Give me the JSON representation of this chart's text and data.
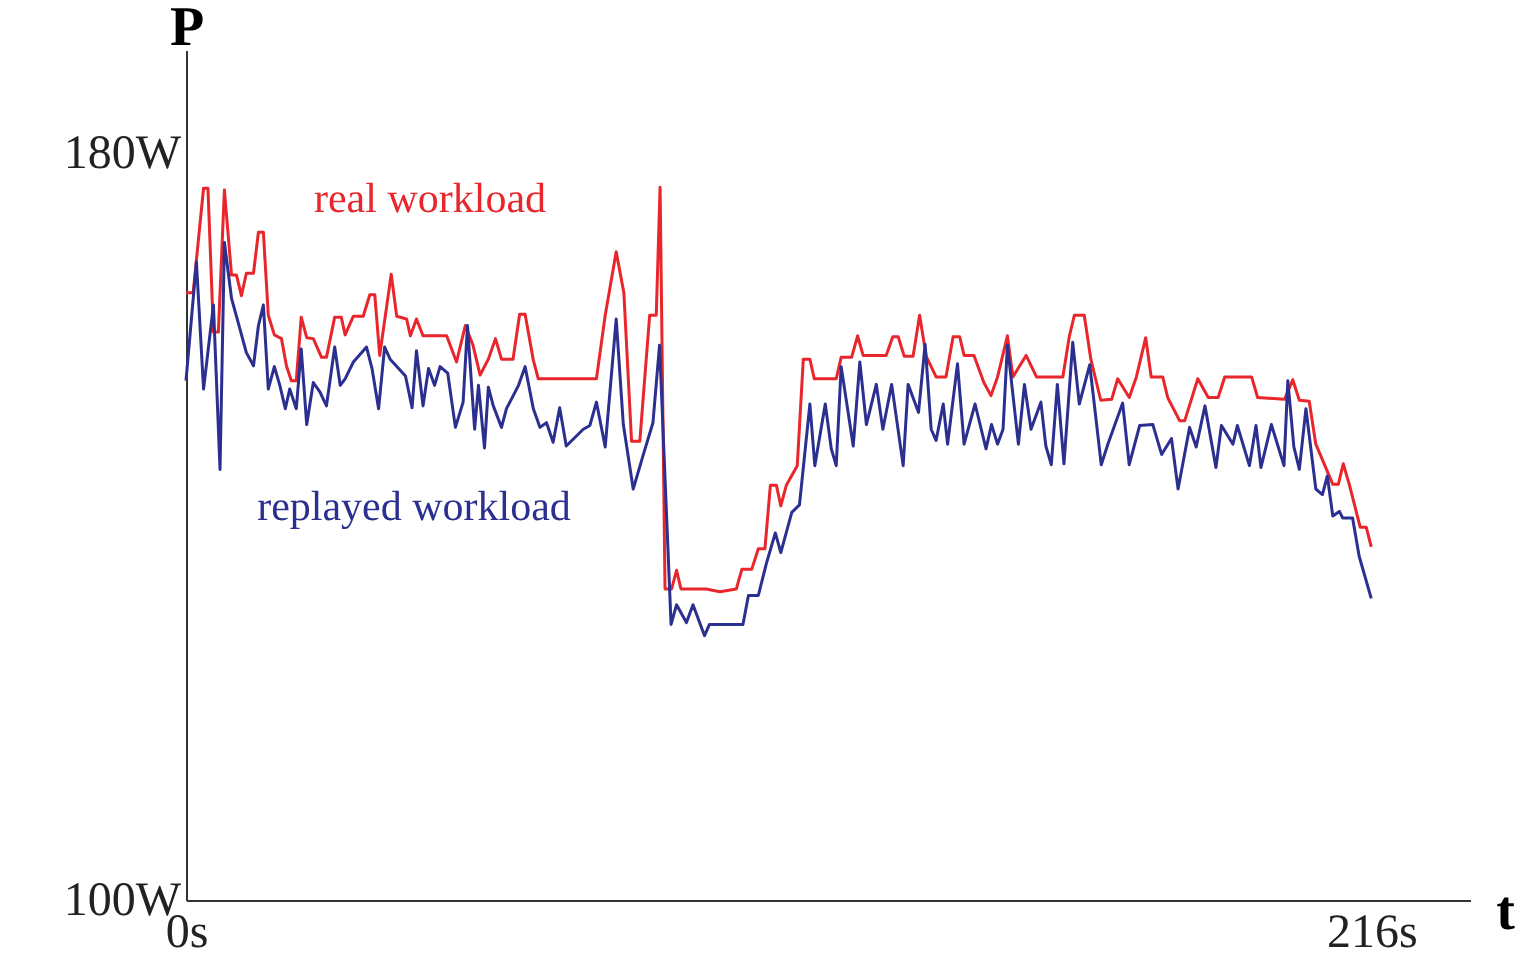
{
  "chart_data": {
    "type": "line",
    "xlabel": "t",
    "ylabel": "P",
    "xlim": [
      0,
      234
    ],
    "ylim": [
      100,
      191
    ],
    "xticks": [
      {
        "value": 0,
        "label": "0s"
      },
      {
        "value": 216,
        "label": "216s"
      }
    ],
    "yticks": [
      {
        "value": 100,
        "label": "100W"
      },
      {
        "value": 180,
        "label": "180W"
      }
    ],
    "grid": false,
    "marker": "none",
    "line_style": "solid",
    "series": [
      {
        "name": "real workload",
        "color": "#e8262b",
        "x": [
          0,
          1.3,
          3.2,
          4.0,
          5.0,
          5.9,
          7.0,
          8.3,
          9.2,
          10.1,
          11.0,
          12.3,
          13.2,
          14.1,
          15.0,
          16.1,
          17.4,
          18.3,
          19.2,
          20.1,
          21.0,
          22.0,
          23.2,
          24.7,
          25.6,
          27.1,
          28.3,
          29.0,
          30.5,
          32.3,
          33.5,
          34.4,
          35.3,
          37.4,
          38.4,
          40.2,
          40.9,
          42.0,
          43.2,
          47.5,
          49.3,
          50.9,
          52.3,
          53.6,
          55.1,
          56.4,
          57.5,
          59.6,
          60.8,
          61.8,
          63.3,
          64.2,
          74.8,
          76.4,
          78.4,
          79.8,
          81.2,
          82.7,
          84.5,
          85.7,
          86.4,
          87.3,
          88.5,
          89.4,
          90.2,
          94.8,
          97.3,
          100.3,
          101.3,
          103.1,
          104.3,
          105.5,
          106.5,
          107.6,
          108.4,
          109.4,
          111.4,
          112.5,
          113.7,
          114.5,
          118.5,
          119.4,
          121.3,
          122.4,
          123.4,
          127.6,
          128.8,
          129.8,
          130.9,
          132.5,
          133.7,
          134.9,
          136.7,
          138.5,
          139.8,
          141.0,
          141.8,
          143.6,
          145.4,
          146.7,
          147.9,
          149.7,
          150.7,
          153.1,
          155.0,
          159.8,
          161.0,
          161.9,
          163.7,
          164.9,
          166.7,
          168.7,
          169.8,
          171.9,
          173.2,
          174.9,
          175.9,
          178.0,
          178.9,
          181.1,
          182.0,
          184.4,
          186.3,
          188.1,
          189.3,
          194.2,
          195.3,
          200.2,
          201.7,
          202.9,
          204.7,
          205.9,
          209.0,
          210.0,
          210.9,
          212.0,
          214.0,
          215.1,
          216.0
        ],
        "values": [
          165.0,
          165.0,
          176.2,
          176.2,
          160.8,
          160.8,
          176.0,
          166.9,
          166.9,
          164.7,
          167.1,
          167.1,
          171.5,
          171.5,
          162.6,
          160.5,
          160.1,
          157.2,
          155.6,
          155.6,
          162.4,
          160.2,
          160.1,
          158.1,
          158.1,
          162.4,
          162.4,
          160.5,
          162.5,
          162.5,
          164.8,
          164.8,
          158.3,
          167.0,
          162.5,
          162.2,
          160.4,
          162.2,
          160.4,
          160.4,
          157.6,
          161.5,
          159.4,
          156.2,
          157.9,
          160.1,
          157.9,
          157.9,
          162.7,
          162.7,
          157.8,
          155.8,
          155.8,
          162.6,
          169.4,
          165.0,
          149.1,
          149.1,
          162.6,
          162.6,
          176.3,
          133.3,
          133.3,
          135.3,
          133.3,
          133.3,
          133.0,
          133.3,
          135.4,
          135.4,
          137.6,
          137.6,
          144.4,
          144.4,
          142.2,
          144.4,
          146.5,
          157.9,
          157.9,
          155.8,
          155.8,
          158.1,
          158.1,
          160.4,
          158.3,
          158.3,
          160.3,
          160.3,
          158.2,
          158.2,
          162.6,
          158.2,
          156.0,
          156.0,
          160.3,
          160.3,
          158.3,
          158.3,
          155.4,
          154.0,
          156.0,
          160.4,
          156.0,
          158.3,
          156.0,
          156.0,
          160.4,
          162.6,
          162.6,
          157.9,
          153.5,
          153.6,
          155.8,
          153.8,
          156.0,
          160.2,
          156.0,
          156.0,
          153.8,
          151.3,
          151.3,
          155.8,
          153.8,
          153.8,
          156.0,
          156.0,
          153.8,
          153.6,
          155.7,
          153.5,
          153.4,
          148.8,
          144.5,
          144.5,
          146.7,
          144.5,
          139.9,
          139.9,
          137.8
        ]
      },
      {
        "name": "replayed workload",
        "color": "#2b2f8f",
        "x": [
          0,
          1.9,
          3.2,
          5.0,
          6.2,
          7.0,
          8.3,
          9.8,
          11.0,
          12.3,
          13.2,
          14.1,
          15.0,
          16.1,
          17.1,
          18.1,
          18.9,
          20.1,
          21.0,
          22.0,
          23.2,
          24.4,
          25.6,
          27.1,
          28.1,
          29.0,
          30.5,
          32.9,
          33.9,
          35.1,
          36.2,
          37.2,
          40.0,
          41.2,
          42.0,
          43.2,
          44.2,
          45.3,
          46.3,
          47.7,
          49.1,
          50.5,
          51.3,
          52.6,
          53.3,
          54.4,
          55.1,
          56.0,
          57.5,
          58.4,
          60.6,
          61.8,
          63.3,
          64.5,
          65.7,
          66.9,
          68.1,
          69.3,
          72.4,
          73.6,
          74.8,
          76.4,
          78.4,
          79.7,
          81.5,
          83.3,
          85.1,
          86.3,
          88.4,
          89.4,
          91.2,
          92.4,
          94.5,
          95.4,
          101.5,
          102.5,
          104.3,
          105.8,
          107.4,
          108.4,
          110.4,
          111.8,
          113.7,
          114.6,
          116.5,
          117.6,
          118.5,
          119.4,
          121.6,
          122.8,
          124.0,
          125.8,
          127.0,
          128.6,
          130.7,
          131.6,
          133.5,
          134.7,
          135.8,
          136.7,
          138.0,
          138.8,
          140.6,
          141.8,
          143.8,
          145.8,
          146.8,
          147.9,
          148.9,
          149.7,
          151.7,
          152.8,
          154.0,
          155.8,
          156.7,
          157.7,
          158.8,
          160.0,
          161.6,
          162.8,
          164.7,
          166.8,
          168.0,
          170.7,
          171.9,
          173.8,
          176.2,
          177.8,
          179.6,
          180.8,
          182.9,
          184.1,
          185.7,
          187.7,
          188.7,
          190.8,
          191.6,
          193.8,
          195.0,
          195.9,
          197.8,
          200.1,
          200.8,
          201.9,
          202.9,
          204.1,
          205.9,
          207.1,
          208.0,
          209.0,
          210.2,
          210.8,
          212.6,
          213.8,
          216.0
        ],
        "values": [
          155.6,
          168.3,
          154.7,
          163.7,
          146.1,
          170.4,
          164.4,
          161.2,
          158.6,
          157.2,
          161.5,
          163.7,
          154.7,
          157.1,
          155.1,
          152.6,
          154.7,
          152.6,
          159.0,
          150.9,
          155.4,
          154.4,
          152.9,
          159.2,
          155.1,
          155.8,
          157.6,
          159.2,
          156.9,
          152.6,
          159.2,
          157.9,
          156.1,
          152.7,
          158.8,
          152.9,
          156.9,
          155.1,
          157.1,
          156.4,
          150.6,
          153.3,
          161.5,
          150.4,
          155.1,
          148.4,
          154.9,
          152.9,
          150.6,
          152.6,
          155.1,
          157.1,
          152.6,
          150.6,
          151.1,
          149.0,
          152.7,
          148.6,
          150.4,
          150.8,
          153.3,
          148.5,
          162.2,
          150.9,
          144.0,
          147.6,
          151.1,
          159.4,
          129.5,
          131.6,
          129.7,
          131.6,
          128.3,
          129.5,
          129.5,
          132.6,
          132.6,
          136.1,
          139.3,
          137.2,
          141.5,
          142.3,
          153.1,
          146.5,
          153.1,
          148.3,
          146.5,
          157.1,
          148.6,
          157.6,
          150.9,
          155.2,
          150.4,
          155.2,
          146.5,
          155.2,
          152.2,
          159.5,
          150.4,
          149.2,
          153.1,
          148.8,
          157.4,
          148.8,
          153.1,
          148.3,
          150.9,
          148.8,
          150.4,
          159.4,
          148.8,
          155.2,
          150.4,
          153.3,
          148.6,
          146.6,
          155.2,
          146.7,
          159.7,
          153.1,
          157.3,
          146.6,
          148.8,
          153.2,
          146.6,
          150.8,
          150.9,
          147.7,
          149.4,
          144.0,
          150.6,
          148.5,
          152.9,
          146.3,
          150.8,
          148.8,
          150.8,
          146.5,
          150.8,
          146.3,
          150.9,
          146.5,
          155.6,
          148.5,
          146.1,
          152.6,
          144.0,
          143.4,
          145.4,
          141.1,
          141.6,
          140.9,
          140.9,
          136.8,
          132.3
        ]
      }
    ]
  }
}
